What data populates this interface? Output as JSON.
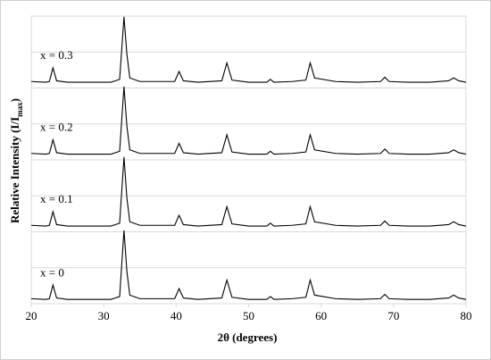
{
  "chart_data": {
    "type": "line",
    "xlabel": "2θ (degrees)",
    "ylabel": {
      "text": "Relative Intensity (I/I",
      "subscript": "max",
      "suffix": ")"
    },
    "x": [
      20,
      22,
      22.5,
      23,
      23.5,
      25,
      28,
      31,
      32.2,
      32.8,
      33.2,
      33.6,
      35,
      37.5,
      39.8,
      40.4,
      41,
      43,
      46.3,
      47,
      47.7,
      50,
      52.5,
      53,
      53.5,
      56,
      57.9,
      58.5,
      59.1,
      62,
      65,
      68.2,
      68.8,
      69.4,
      72,
      75,
      77.6,
      78.3,
      79,
      80
    ],
    "series": [
      {
        "name": "x = 0.3",
        "color": "#000000",
        "values": [
          3.09,
          3.08,
          3.09,
          3.28,
          3.1,
          3.08,
          3.08,
          3.08,
          3.12,
          3.99,
          3.47,
          3.14,
          3.09,
          3.09,
          3.09,
          3.23,
          3.1,
          3.08,
          3.1,
          3.35,
          3.11,
          3.08,
          3.08,
          3.12,
          3.08,
          3.09,
          3.11,
          3.35,
          3.14,
          3.09,
          3.08,
          3.09,
          3.15,
          3.09,
          3.08,
          3.08,
          3.1,
          3.14,
          3.1,
          3.08
        ]
      },
      {
        "name": "x = 0.2",
        "color": "#000000",
        "values": [
          2.09,
          2.08,
          2.09,
          2.28,
          2.1,
          2.08,
          2.08,
          2.08,
          2.12,
          3.02,
          2.47,
          2.14,
          2.09,
          2.09,
          2.09,
          2.23,
          2.1,
          2.08,
          2.1,
          2.35,
          2.11,
          2.08,
          2.08,
          2.12,
          2.08,
          2.09,
          2.11,
          2.35,
          2.14,
          2.09,
          2.08,
          2.09,
          2.15,
          2.09,
          2.08,
          2.08,
          2.1,
          2.14,
          2.1,
          2.08
        ]
      },
      {
        "name": "x = 0.1",
        "color": "#000000",
        "values": [
          1.09,
          1.08,
          1.09,
          1.28,
          1.1,
          1.08,
          1.08,
          1.08,
          1.12,
          2.04,
          1.47,
          1.14,
          1.09,
          1.09,
          1.09,
          1.23,
          1.1,
          1.08,
          1.1,
          1.35,
          1.11,
          1.08,
          1.08,
          1.12,
          1.08,
          1.09,
          1.11,
          1.35,
          1.14,
          1.09,
          1.08,
          1.09,
          1.15,
          1.09,
          1.08,
          1.08,
          1.1,
          1.14,
          1.1,
          1.08
        ]
      },
      {
        "name": "x = 0",
        "color": "#000000",
        "values": [
          0.07,
          0.06,
          0.07,
          0.26,
          0.08,
          0.06,
          0.06,
          0.06,
          0.1,
          1.02,
          0.45,
          0.12,
          0.07,
          0.07,
          0.07,
          0.21,
          0.08,
          0.06,
          0.08,
          0.33,
          0.09,
          0.06,
          0.06,
          0.1,
          0.06,
          0.07,
          0.09,
          0.33,
          0.12,
          0.07,
          0.06,
          0.07,
          0.13,
          0.07,
          0.06,
          0.06,
          0.08,
          0.12,
          0.08,
          0.06
        ]
      }
    ],
    "xlim": [
      20,
      80
    ],
    "xticks": [
      20,
      30,
      40,
      50,
      60,
      70,
      80
    ],
    "ylim": [
      0,
      4
    ],
    "yticks": [
      0,
      0.5,
      1,
      1.5,
      2,
      2.5,
      3,
      3.5,
      4
    ],
    "ytick_labels": false,
    "grid": true
  }
}
